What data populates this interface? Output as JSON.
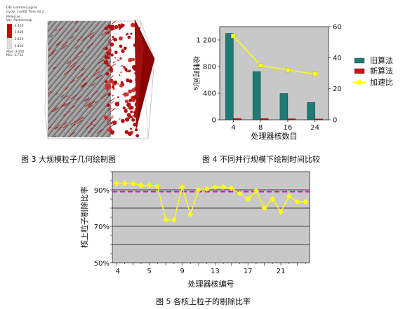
{
  "figure3": {
    "caption": "图 3   大规模粒子几何绘制图",
    "overlay": {
      "title": "DB: summary.pgmo",
      "cycle": "Cycle: 1e400    Time:33.2",
      "var_label": "Molecule",
      "var_name": "Var: Particlemap",
      "legend_values": [
        "-3.450",
        "-3.400",
        "-3.450",
        "-3.400"
      ],
      "max": "Max:-3.450",
      "min": "Min:-3.734"
    }
  },
  "figure4": {
    "caption": "图 4   不同并行规模下绘制时间比较",
    "colors": {
      "old": "#1f7a75",
      "new": "#cc1111",
      "speedup": "#ffff00",
      "plot_bg": "#c8c8c8"
    },
    "chart_data": {
      "type": "bar",
      "categories": [
        "4",
        "8",
        "16",
        "24"
      ],
      "xlabel": "处理器核数目",
      "ylabel": "绘制时间/s",
      "ylim": [
        0,
        1400
      ],
      "yticks": [
        "0",
        "400",
        "800",
        "1 200"
      ],
      "y2lim": [
        0,
        60
      ],
      "y2ticks": [
        "0",
        "20",
        "40",
        "60"
      ],
      "series": [
        {
          "name": "旧算法",
          "values": [
            1300,
            725,
            395,
            260
          ]
        },
        {
          "name": "新算法",
          "values": [
            20,
            18,
            15,
            12
          ]
        },
        {
          "name": "加速比",
          "type": "line",
          "axis": "right",
          "values": [
            54,
            35,
            32,
            29.5
          ]
        }
      ],
      "legend": "right"
    }
  },
  "figure5": {
    "caption": "图 5   各核上粒子的剔除比率",
    "colors": {
      "line": "#ffff00",
      "reference": "#dd00dd",
      "plot_bg": "#c8c8c8"
    },
    "chart_data": {
      "type": "line",
      "xlabel": "处理器核编号",
      "ylabel": "核上粒子剔除比率",
      "xticks": [
        "4",
        "5",
        "9",
        "13",
        "17",
        "21"
      ],
      "ylim": [
        50,
        100
      ],
      "yticks": [
        "50%",
        "70%",
        "90%"
      ],
      "x": [
        1,
        2,
        3,
        4,
        5,
        6,
        7,
        8,
        9,
        10,
        11,
        12,
        13,
        14,
        15,
        16,
        17,
        18,
        19,
        20,
        21,
        22,
        23,
        24
      ],
      "values": [
        93.5,
        93.5,
        93.5,
        92.5,
        92.5,
        92,
        73.5,
        73.5,
        91.5,
        76.5,
        90,
        90.5,
        91.5,
        91.5,
        91,
        88,
        85,
        89.5,
        80,
        85,
        78,
        86.5,
        83.5,
        83.5
      ],
      "reference": 89
    }
  }
}
